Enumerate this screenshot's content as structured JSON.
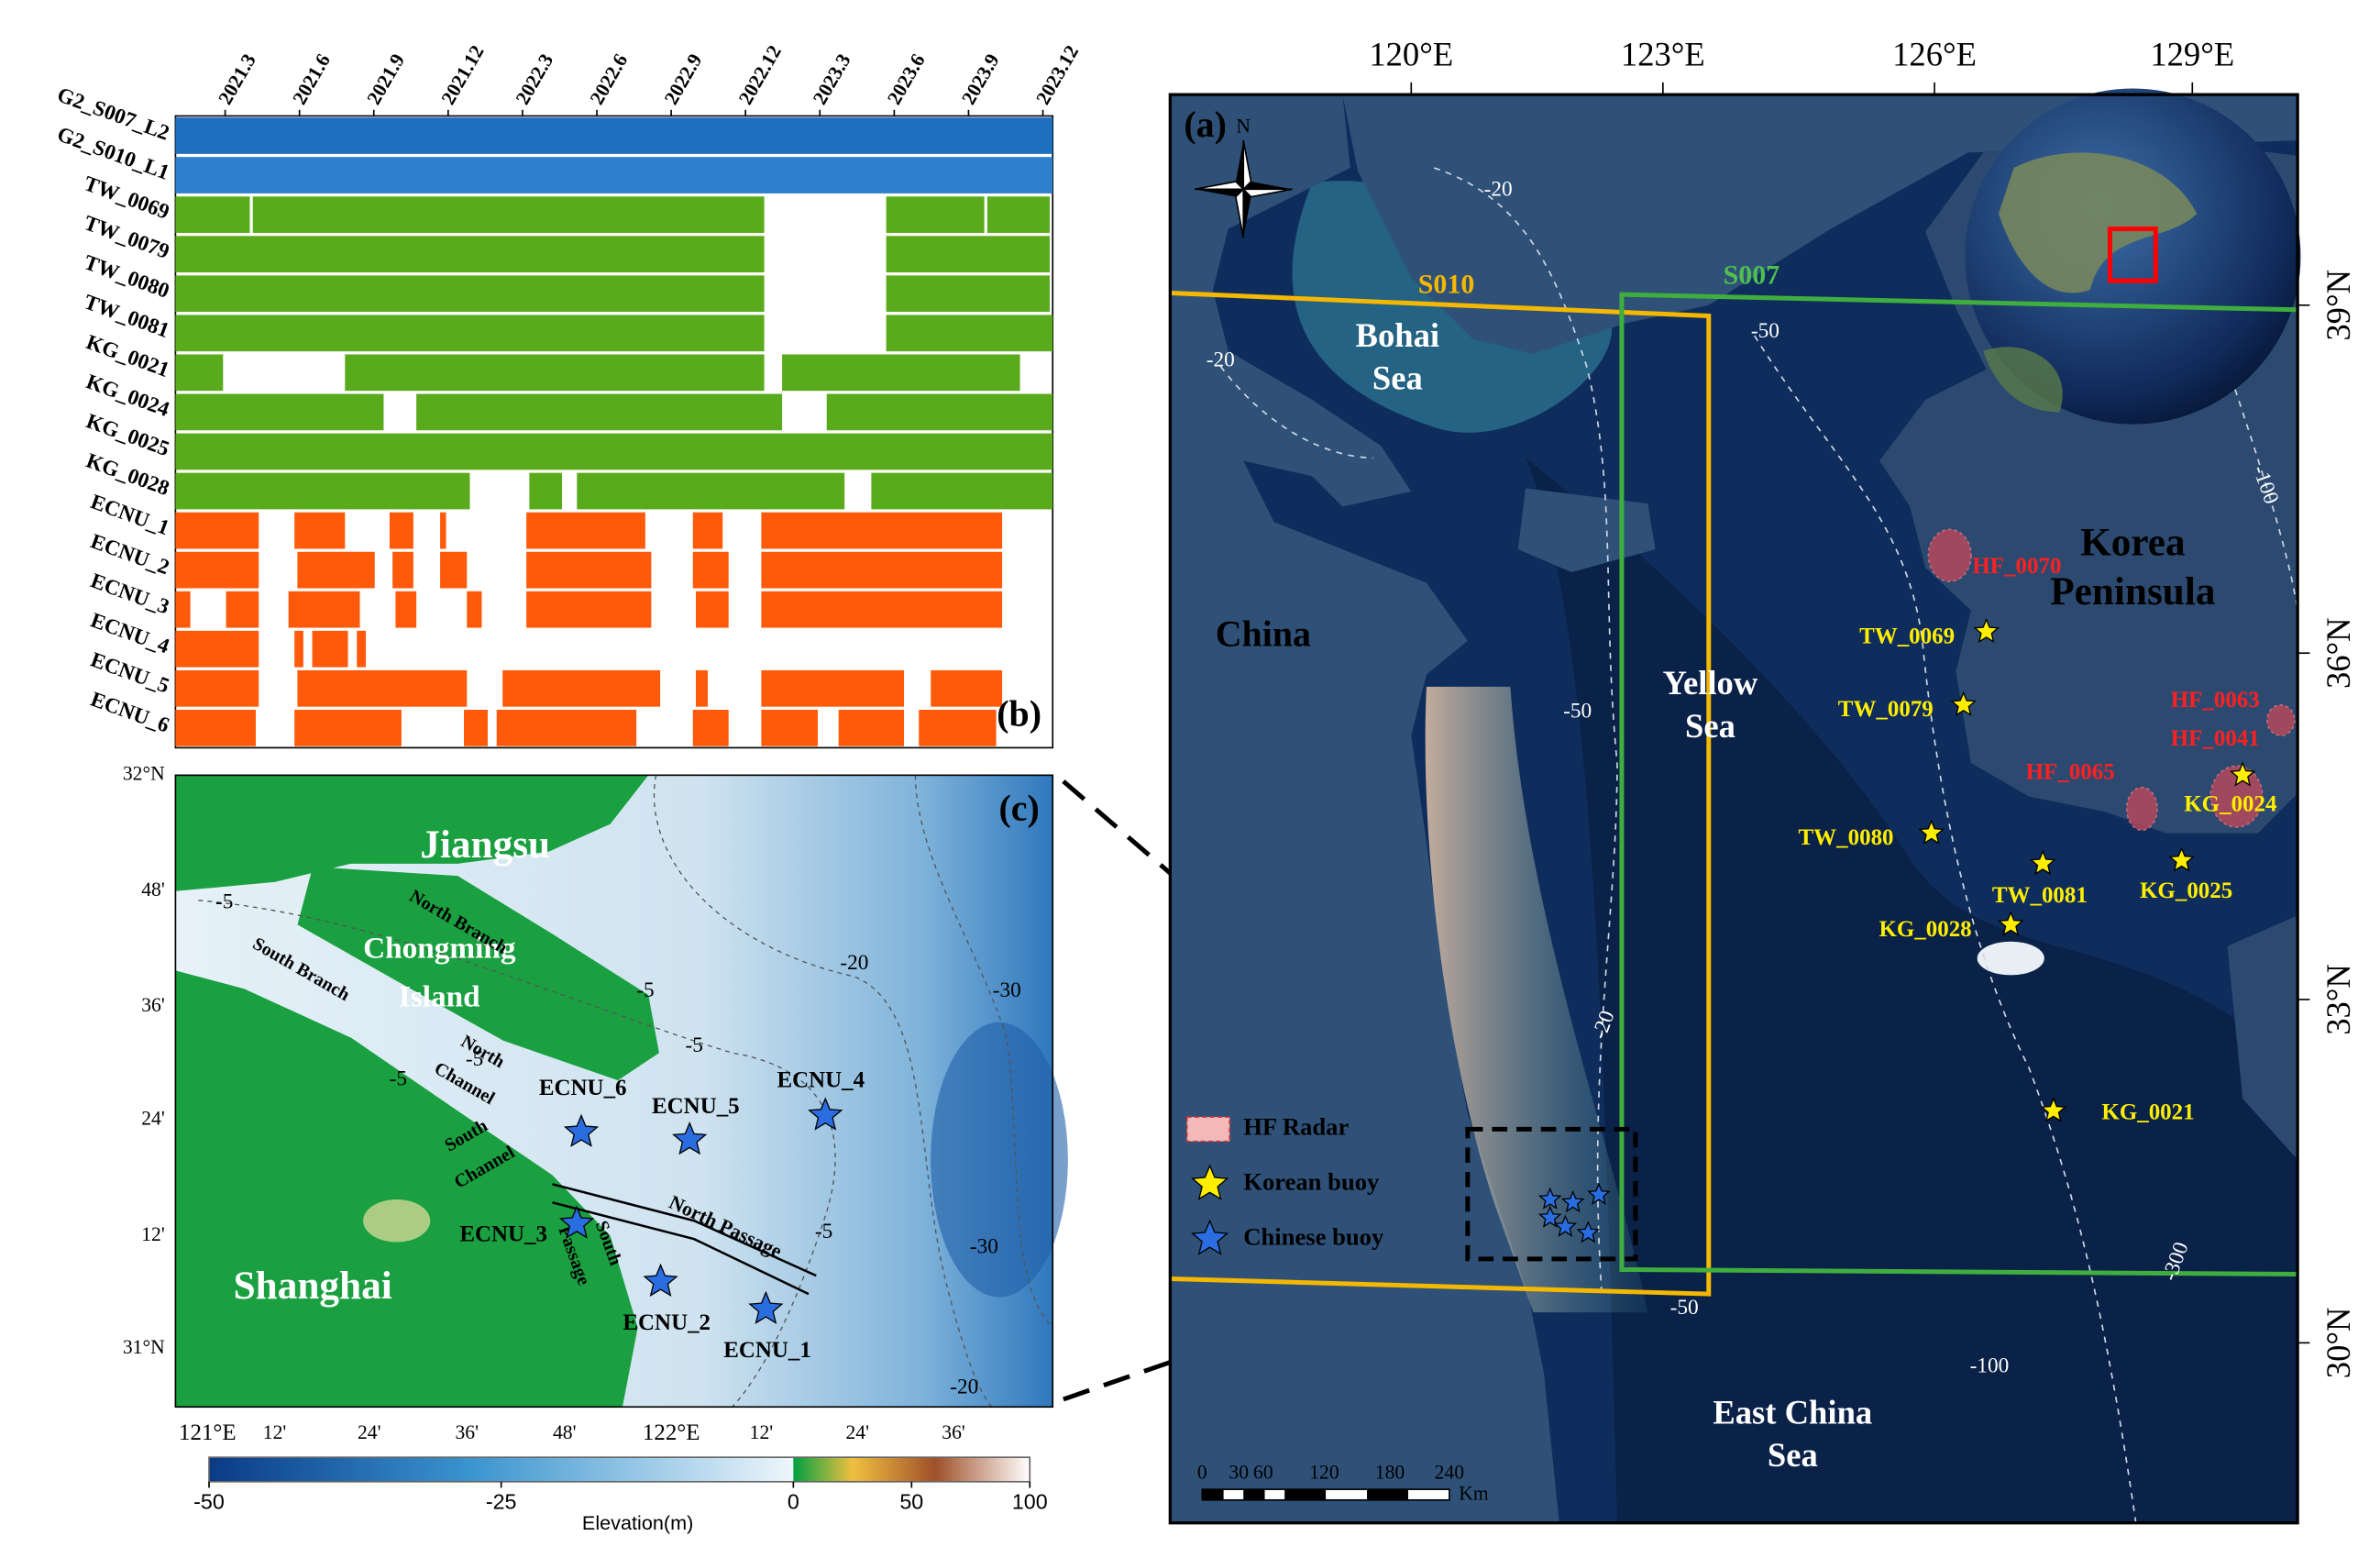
{
  "panel_b": {
    "label": "(b)",
    "xlim": [
      2021.0,
      2023.95
    ],
    "xticks": [
      {
        "value": 2021.167,
        "label": "2021.3"
      },
      {
        "value": 2021.417,
        "label": "2021.6"
      },
      {
        "value": 2021.667,
        "label": "2021.9"
      },
      {
        "value": 2021.917,
        "label": "2021.12"
      },
      {
        "value": 2022.167,
        "label": "2022.3"
      },
      {
        "value": 2022.417,
        "label": "2022.6"
      },
      {
        "value": 2022.667,
        "label": "2022.9"
      },
      {
        "value": 2022.917,
        "label": "2022.12"
      },
      {
        "value": 2023.167,
        "label": "2023.3"
      },
      {
        "value": 2023.417,
        "label": "2023.6"
      },
      {
        "value": 2023.667,
        "label": "2023.9"
      },
      {
        "value": 2023.917,
        "label": "2023.12"
      }
    ],
    "rows": [
      {
        "name": "G2_S007_L2",
        "color": "#1f6fc0",
        "periods": [
          [
            2021.0,
            2023.95
          ]
        ]
      },
      {
        "name": "G2_S010_L1",
        "color": "#2f80cc",
        "periods": [
          [
            2021.0,
            2023.95
          ]
        ]
      },
      {
        "name": "TW_0069",
        "color": "#5aab1c",
        "periods": [
          [
            2021.0,
            2021.25
          ],
          [
            2021.26,
            2022.98
          ],
          [
            2023.39,
            2023.72
          ],
          [
            2023.73,
            2023.94
          ]
        ]
      },
      {
        "name": "TW_0079",
        "color": "#5aab1c",
        "periods": [
          [
            2021.0,
            2022.98
          ],
          [
            2023.39,
            2023.94
          ]
        ]
      },
      {
        "name": "TW_0080",
        "color": "#5aab1c",
        "periods": [
          [
            2021.0,
            2022.98
          ],
          [
            2023.39,
            2023.94
          ]
        ]
      },
      {
        "name": "TW_0081",
        "color": "#5aab1c",
        "periods": [
          [
            2021.0,
            2022.98
          ],
          [
            2023.39,
            2023.95
          ]
        ]
      },
      {
        "name": "KG_0021",
        "color": "#5aab1c",
        "periods": [
          [
            2021.0,
            2021.16
          ],
          [
            2021.57,
            2022.98
          ],
          [
            2023.04,
            2023.84
          ]
        ]
      },
      {
        "name": "KG_0024",
        "color": "#5aab1c",
        "periods": [
          [
            2021.0,
            2021.7
          ],
          [
            2021.81,
            2023.04
          ],
          [
            2023.19,
            2023.95
          ]
        ]
      },
      {
        "name": "KG_0025",
        "color": "#5aab1c",
        "periods": [
          [
            2021.0,
            2023.95
          ]
        ]
      },
      {
        "name": "KG_0028",
        "color": "#5aab1c",
        "periods": [
          [
            2021.0,
            2021.99
          ],
          [
            2022.19,
            2022.3
          ],
          [
            2022.35,
            2023.25
          ],
          [
            2023.34,
            2023.95
          ]
        ]
      },
      {
        "name": "ECNU_1",
        "color": "#ff5a0a",
        "periods": [
          [
            2021.0,
            2021.28
          ],
          [
            2021.4,
            2021.57
          ],
          [
            2021.72,
            2021.8
          ],
          [
            2021.89,
            2021.91
          ],
          [
            2022.18,
            2022.58
          ],
          [
            2022.74,
            2022.84
          ],
          [
            2022.97,
            2023.78
          ]
        ]
      },
      {
        "name": "ECNU_2",
        "color": "#ff5a0a",
        "periods": [
          [
            2021.0,
            2021.28
          ],
          [
            2021.41,
            2021.67
          ],
          [
            2021.73,
            2021.8
          ],
          [
            2021.89,
            2021.98
          ],
          [
            2022.18,
            2022.6
          ],
          [
            2022.74,
            2022.86
          ],
          [
            2022.97,
            2023.78
          ]
        ]
      },
      {
        "name": "ECNU_3",
        "color": "#ff5a0a",
        "periods": [
          [
            2021.0,
            2021.05
          ],
          [
            2021.17,
            2021.28
          ],
          [
            2021.38,
            2021.62
          ],
          [
            2021.74,
            2021.81
          ],
          [
            2021.98,
            2022.03
          ],
          [
            2022.18,
            2022.6
          ],
          [
            2022.75,
            2022.86
          ],
          [
            2022.97,
            2023.78
          ]
        ]
      },
      {
        "name": "ECNU_4",
        "color": "#ff5a0a",
        "periods": [
          [
            2021.0,
            2021.28
          ],
          [
            2021.4,
            2021.43
          ],
          [
            2021.46,
            2021.58
          ],
          [
            2021.61,
            2021.64
          ]
        ]
      },
      {
        "name": "ECNU_5",
        "color": "#ff5a0a",
        "periods": [
          [
            2021.0,
            2021.28
          ],
          [
            2021.41,
            2021.98
          ],
          [
            2022.1,
            2022.63
          ],
          [
            2022.75,
            2022.79
          ],
          [
            2022.97,
            2023.45
          ],
          [
            2023.54,
            2023.78
          ]
        ]
      },
      {
        "name": "ECNU_6",
        "color": "#ff5a0a",
        "periods": [
          [
            2021.0,
            2021.27
          ],
          [
            2021.4,
            2021.76
          ],
          [
            2021.97,
            2022.05
          ],
          [
            2022.08,
            2022.55
          ],
          [
            2022.74,
            2022.86
          ],
          [
            2022.97,
            2023.16
          ],
          [
            2023.23,
            2023.45
          ],
          [
            2023.5,
            2023.76
          ]
        ]
      }
    ]
  },
  "panel_a": {
    "label": "(a)",
    "north": "N",
    "lon_ticks": [
      "120°E",
      "123°E",
      "126°E",
      "129°E"
    ],
    "lat_ticks": [
      "39°N",
      "36°N",
      "33°N",
      "30°N"
    ],
    "places": [
      {
        "lines": [
          "China"
        ]
      },
      {
        "lines": [
          "Bohai",
          "Sea"
        ]
      },
      {
        "lines": [
          "Yellow",
          "Sea"
        ]
      },
      {
        "lines": [
          "Korea",
          "Peninsula"
        ]
      },
      {
        "lines": [
          "East China",
          "Sea"
        ]
      },
      {
        "lines": [
          "S010"
        ]
      },
      {
        "lines": [
          "S007"
        ]
      }
    ],
    "korean_buoys": [
      "TW_0069",
      "TW_0079",
      "TW_0080",
      "TW_0081",
      "KG_0028",
      "KG_0024",
      "KG_0025",
      "KG_0021"
    ],
    "hf_radars": [
      "HF_0070",
      "HF_0063",
      "HF_0041",
      "HF_0065"
    ],
    "contours": [
      "-20",
      "-20",
      "-20",
      "-50",
      "-50",
      "-50",
      "-100",
      "-100",
      "-300"
    ],
    "legend": [
      "HF Radar",
      "Korean buoy",
      "Chinese buoy"
    ],
    "scale": {
      "ticks": [
        "0",
        "30",
        "60",
        "120",
        "180",
        "240"
      ],
      "unit": "Km"
    }
  },
  "panel_c": {
    "label": "(c)",
    "lat_ticks": [
      "32°N",
      "48'",
      "36'",
      "24'",
      "12'",
      "31°N"
    ],
    "lon_ticks": [
      "121°E",
      "12'",
      "24'",
      "36'",
      "48'",
      "122°E",
      "12'",
      "24'",
      "36'"
    ],
    "places": [
      {
        "lines": [
          "Jiangsu"
        ]
      },
      {
        "lines": [
          "Chongming",
          "Island"
        ]
      },
      {
        "lines": [
          "Shanghai"
        ]
      },
      {
        "lines": [
          "North Branch"
        ]
      },
      {
        "lines": [
          "South Branch"
        ]
      },
      {
        "lines": [
          "North",
          "Channel"
        ]
      },
      {
        "lines": [
          "South",
          "Channel"
        ]
      },
      {
        "lines": [
          "South",
          "Passage"
        ]
      },
      {
        "lines": [
          "North Passage"
        ]
      }
    ],
    "buoys": [
      "ECNU_6",
      "ECNU_5",
      "ECNU_4",
      "ECNU_3",
      "ECNU_2",
      "ECNU_1"
    ],
    "contours": [
      "-5",
      "-5",
      "-5",
      "-5",
      "-5",
      "-5",
      "-20",
      "-20",
      "-30",
      "-30"
    ]
  },
  "colorbar": {
    "title": "Elevation(m)",
    "ticks": [
      -50,
      -25,
      0,
      50,
      100
    ]
  }
}
